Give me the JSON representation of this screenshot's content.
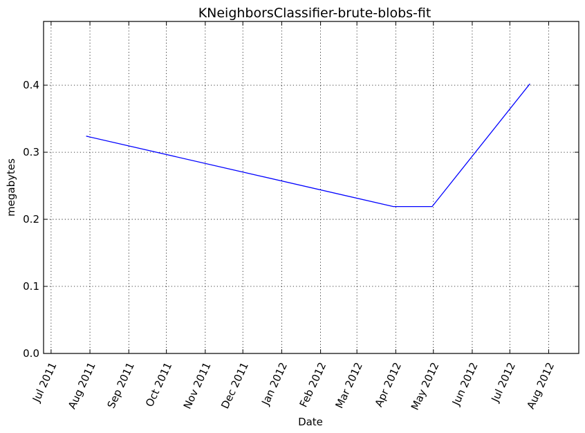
{
  "chart_data": {
    "type": "line",
    "title": "KNeighborsClassifier-brute-blobs-fit",
    "xlabel": "Date",
    "ylabel": "megabytes",
    "x_type": "date",
    "xlim": [
      "2011-06-25",
      "2012-08-25"
    ],
    "ylim": [
      0,
      0.495
    ],
    "x_ticks": [
      {
        "date": "2011-07-01",
        "label": "Jul 2011"
      },
      {
        "date": "2011-08-01",
        "label": "Aug 2011"
      },
      {
        "date": "2011-09-01",
        "label": "Sep 2011"
      },
      {
        "date": "2011-10-01",
        "label": "Oct 2011"
      },
      {
        "date": "2011-11-01",
        "label": "Nov 2011"
      },
      {
        "date": "2011-12-01",
        "label": "Dec 2011"
      },
      {
        "date": "2012-01-01",
        "label": "Jan 2012"
      },
      {
        "date": "2012-02-01",
        "label": "Feb 2012"
      },
      {
        "date": "2012-03-01",
        "label": "Mar 2012"
      },
      {
        "date": "2012-04-01",
        "label": "Apr 2012"
      },
      {
        "date": "2012-05-01",
        "label": "May 2012"
      },
      {
        "date": "2012-06-01",
        "label": "Jun 2012"
      },
      {
        "date": "2012-07-01",
        "label": "Jul 2012"
      },
      {
        "date": "2012-08-01",
        "label": "Aug 2012"
      }
    ],
    "y_ticks": [
      {
        "value": 0.0,
        "label": "0.0"
      },
      {
        "value": 0.1,
        "label": "0.1"
      },
      {
        "value": 0.2,
        "label": "0.2"
      },
      {
        "value": 0.3,
        "label": "0.3"
      },
      {
        "value": 0.4,
        "label": "0.4"
      }
    ],
    "grid": true,
    "series": [
      {
        "color": "#0000ff",
        "points": [
          {
            "x": "2011-07-29",
            "y": 0.324
          },
          {
            "x": "2012-03-30",
            "y": 0.219
          },
          {
            "x": "2012-04-30",
            "y": 0.219
          },
          {
            "x": "2012-07-17",
            "y": 0.402
          }
        ]
      }
    ]
  }
}
